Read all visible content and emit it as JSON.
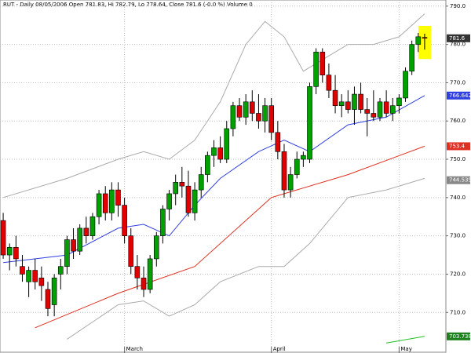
{
  "chart_data": {
    "type": "candlestick",
    "title": "RUT - Daily 08/05/2006 Open 781.83, Hi 782.79, Lo 778.64, Close 781.6 (-0.0 %) Volume 0",
    "categories": [
      null,
      null,
      null,
      null,
      null,
      null,
      null,
      null,
      null,
      null,
      null,
      null,
      null,
      null,
      null,
      null,
      null,
      null,
      null,
      "March",
      null,
      null,
      null,
      null,
      null,
      null,
      null,
      null,
      null,
      null,
      null,
      null,
      null,
      null,
      null,
      null,
      null,
      null,
      null,
      null,
      null,
      null,
      "April",
      null,
      null,
      null,
      null,
      null,
      null,
      null,
      null,
      null,
      null,
      null,
      null,
      null,
      null,
      null,
      null,
      null,
      null,
      null,
      "May",
      null,
      null,
      null,
      null
    ],
    "open": [
      734,
      725,
      727,
      722,
      718,
      721,
      719,
      716,
      712,
      720,
      722,
      729,
      726,
      732,
      730,
      735,
      741,
      736,
      742,
      738,
      730,
      722,
      719,
      716,
      724,
      730,
      737,
      741,
      744,
      743,
      736,
      742,
      746,
      751,
      753,
      750,
      758,
      764,
      761,
      765,
      762,
      760,
      764,
      757,
      752,
      742,
      746,
      750,
      750,
      769,
      778,
      772,
      768,
      764,
      765,
      763,
      767,
      763,
      762,
      761,
      765,
      762,
      764,
      766,
      773,
      780,
      781.83
    ],
    "high": [
      736,
      728,
      730,
      725,
      722,
      724,
      722,
      718,
      720,
      724,
      730,
      732,
      733,
      735,
      736,
      742,
      743,
      744,
      744,
      740,
      732,
      725,
      722,
      725,
      731,
      738,
      742,
      746,
      748,
      747,
      744,
      748,
      752,
      755,
      756,
      760,
      765,
      766,
      767,
      768,
      767,
      766,
      766,
      760,
      754,
      748,
      752,
      752,
      770,
      779,
      779,
      775,
      772,
      767,
      768,
      769,
      770,
      766,
      768,
      766,
      768,
      766,
      767,
      774,
      781,
      783,
      782.79
    ],
    "low": [
      724,
      721,
      722,
      718,
      714,
      716,
      713,
      709,
      709,
      716,
      720,
      724,
      725,
      728,
      729,
      733,
      734,
      734,
      735,
      728,
      720,
      716,
      714,
      715,
      722,
      728,
      734,
      738,
      740,
      735,
      734,
      740,
      744,
      748,
      749,
      749,
      756,
      760,
      759,
      760,
      758,
      757,
      755,
      750,
      740,
      740,
      745,
      748,
      749,
      767,
      770,
      766,
      762,
      761,
      762,
      759,
      762,
      756,
      760,
      760,
      761,
      760,
      762,
      765,
      772,
      778,
      778.64
    ],
    "close": [
      725,
      727,
      724,
      720,
      721,
      718,
      717,
      711,
      719,
      722,
      729,
      726,
      732,
      730,
      735,
      741,
      736,
      742,
      738,
      730,
      722,
      719,
      716,
      724,
      730,
      737,
      741,
      744,
      743,
      736,
      742,
      746,
      751,
      753,
      750,
      758,
      764,
      761,
      765,
      762,
      760,
      764,
      757,
      752,
      742,
      746,
      750,
      751,
      769,
      778,
      772,
      768,
      764,
      765,
      763,
      767,
      763,
      762,
      761,
      765,
      762,
      764,
      766,
      773,
      780,
      782,
      781.6
    ],
    "up_color": "#00a000",
    "down_color": "#e00000",
    "overlays": [
      {
        "color": "#aaaaaa",
        "x": [
          0,
          10,
          18,
          22,
          26,
          30,
          34,
          38,
          41,
          44,
          47,
          50,
          54,
          58,
          62,
          66
        ],
        "values": [
          740,
          745,
          750,
          752,
          750,
          755,
          765,
          780,
          786,
          782,
          773,
          776,
          780,
          780,
          782,
          788
        ]
      },
      {
        "color": "#aaaaaa",
        "x": [
          10,
          18,
          22,
          26,
          30,
          34,
          40,
          44,
          48,
          54,
          60,
          66
        ],
        "values": [
          703,
          712,
          713,
          709,
          712,
          718,
          722,
          722,
          728,
          740,
          742,
          745
        ]
      },
      {
        "color": "#3040e0",
        "x": [
          0,
          10,
          18,
          22,
          26,
          30,
          34,
          40,
          44,
          48,
          54,
          60,
          66
        ],
        "values": [
          723,
          725,
          732,
          733,
          730,
          738,
          745,
          752,
          755,
          752,
          759,
          761,
          766.642
        ]
      },
      {
        "color": "#e03020",
        "x": [
          5,
          18,
          30,
          42,
          54,
          66
        ],
        "values": [
          706,
          715,
          722,
          740,
          746,
          753.4
        ]
      },
      {
        "color": "#20c020",
        "x": [
          60,
          66
        ],
        "values": [
          702,
          703.738
        ]
      }
    ],
    "value_tags": [
      {
        "value": 781.6,
        "color": "#333333"
      },
      {
        "value": 766.642,
        "color": "#3040e0"
      },
      {
        "value": 753.4,
        "color": "#e03020"
      },
      {
        "value": 744.535,
        "color": "#888888"
      },
      {
        "value": 703.738,
        "color": "#208020"
      }
    ],
    "highlight_color": "#ffff00",
    "ylim": [
      699.4,
      791.6
    ],
    "yticks": [
      {
        "value": 710,
        "label": "710.0"
      },
      {
        "value": 720,
        "label": "720.0"
      },
      {
        "value": 730,
        "label": "730.0"
      },
      {
        "value": 740,
        "label": "740.0"
      },
      {
        "value": 750,
        "label": "750.0"
      },
      {
        "value": 760,
        "label": "760.0"
      },
      {
        "value": 770,
        "label": "770.0"
      },
      {
        "value": 780,
        "label": "780.0"
      },
      {
        "value": 790,
        "label": "790.0"
      }
    ],
    "grid": true
  }
}
